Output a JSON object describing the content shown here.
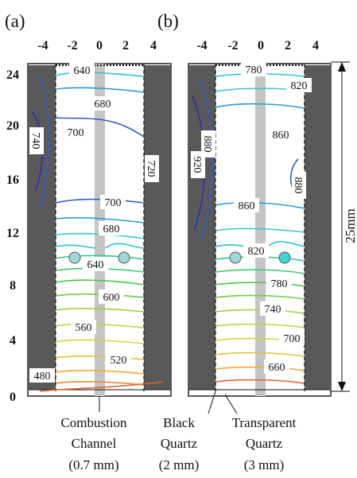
{
  "panels": [
    {
      "label": "(a)",
      "x_ticks": [
        "-4",
        "-2",
        "0",
        "2",
        "4"
      ],
      "contour_labels": [
        "640",
        "680",
        "700",
        "740",
        "720",
        "700",
        "680",
        "640",
        "600",
        "560",
        "520",
        "480"
      ]
    },
    {
      "label": "(b)",
      "x_ticks": [
        "-4",
        "-2",
        "0",
        "2",
        "4"
      ],
      "contour_labels": [
        "780",
        "820",
        "860",
        "920",
        "880",
        "880",
        "860",
        "820",
        "780",
        "740",
        "700",
        "660"
      ]
    }
  ],
  "y_ticks": [
    "0",
    "4",
    "8",
    "12",
    "16",
    "20",
    "24"
  ],
  "height_label": "25mm",
  "callouts": {
    "combustion": [
      "Combustion",
      "Channel",
      "(0.7 mm)"
    ],
    "black": [
      "Black",
      "Quartz",
      "(2 mm)"
    ],
    "transparent": [
      "Transparent",
      "Quartz",
      "(3 mm)"
    ]
  },
  "colors": {
    "wall": "#595959",
    "channel": "#c4c4c4",
    "contour_scale": [
      "#e8602c",
      "#f0a830",
      "#d6d33a",
      "#9ad43c",
      "#45c84a",
      "#2fc98f",
      "#27c7c9",
      "#2b9bd8",
      "#2f5fc6",
      "#2b2fb0"
    ]
  }
}
